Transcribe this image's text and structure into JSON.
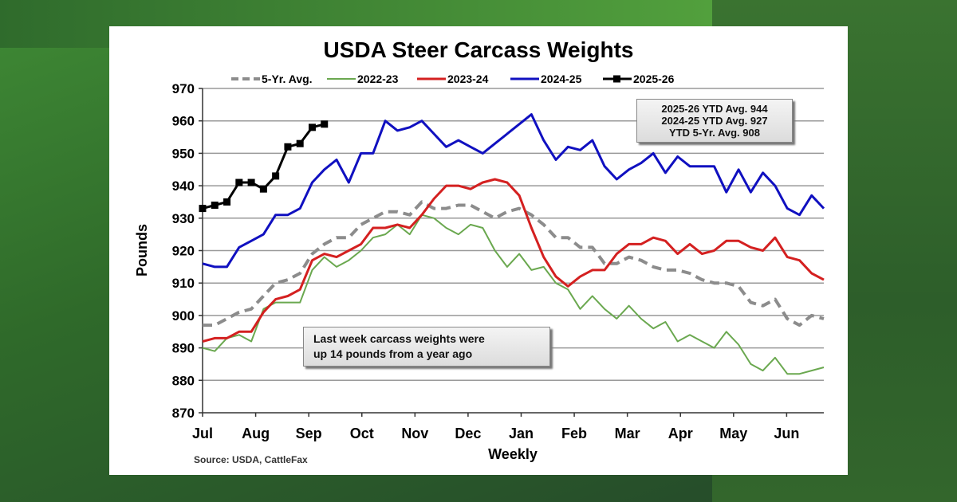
{
  "chart_data": {
    "type": "line",
    "title": "USDA Steer Carcass Weights",
    "xlabel": "Weekly",
    "ylabel": "Pounds",
    "ylim": [
      870,
      970
    ],
    "yticks": [
      870,
      880,
      890,
      900,
      910,
      920,
      930,
      940,
      950,
      960,
      970
    ],
    "month_labels": [
      "Jul",
      "Aug",
      "Sep",
      "Oct",
      "Nov",
      "Dec",
      "Jan",
      "Feb",
      "Mar",
      "Apr",
      "May",
      "Jun"
    ],
    "grid": true,
    "legend_placement": "top",
    "source": "Source: USDA, CattleFax",
    "annotations": {
      "note_line1": "Last week carcass weights were",
      "note_line2": "up 14 pounds from a year ago",
      "ytd_1": "2025-26 YTD Avg. 944",
      "ytd_2": "2024-25 YTD Avg. 927",
      "ytd_3": "YTD 5-Yr. Avg. 908"
    },
    "series": [
      {
        "name": "5-Yr. Avg.",
        "color": "#8c8c8c",
        "style": "dashed",
        "values": [
          897,
          897,
          899,
          901,
          902,
          906,
          910,
          911,
          913,
          919,
          922,
          924,
          924,
          928,
          930,
          932,
          932,
          931,
          935,
          933,
          933,
          934,
          934,
          932,
          930,
          932,
          933,
          931,
          928,
          924,
          924,
          921,
          921,
          916,
          916,
          918,
          917,
          915,
          914,
          914,
          913,
          911,
          910,
          910,
          909,
          904,
          903,
          905,
          899,
          897,
          900,
          899
        ]
      },
      {
        "name": "2022-23",
        "color": "#6aa84f",
        "style": "solid",
        "values": [
          890,
          889,
          893,
          894,
          892,
          902,
          904,
          904,
          904,
          914,
          918,
          915,
          917,
          920,
          924,
          925,
          928,
          925,
          931,
          930,
          927,
          925,
          928,
          927,
          920,
          915,
          919,
          914,
          915,
          910,
          908,
          902,
          906,
          902,
          899,
          903,
          899,
          896,
          898,
          892,
          894,
          892,
          890,
          895,
          891,
          885,
          883,
          887,
          882,
          882,
          883,
          884
        ]
      },
      {
        "name": "2023-24",
        "color": "#d42020",
        "style": "solid",
        "values": [
          892,
          893,
          893,
          895,
          895,
          901,
          905,
          906,
          908,
          917,
          919,
          918,
          920,
          922,
          927,
          927,
          928,
          927,
          931,
          936,
          940,
          940,
          939,
          941,
          942,
          941,
          937,
          927,
          918,
          912,
          909,
          912,
          914,
          914,
          919,
          922,
          922,
          924,
          923,
          919,
          922,
          919,
          920,
          923,
          923,
          921,
          920,
          924,
          918,
          917,
          913,
          911
        ]
      },
      {
        "name": "2024-25",
        "color": "#1010c0",
        "style": "solid",
        "values": [
          916,
          915,
          915,
          921,
          923,
          925,
          931,
          931,
          933,
          941,
          945,
          948,
          941,
          950,
          950,
          960,
          957,
          958,
          960,
          956,
          952,
          954,
          952,
          950,
          953,
          956,
          959,
          962,
          954,
          948,
          952,
          951,
          954,
          946,
          942,
          945,
          947,
          950,
          944,
          949,
          946,
          946,
          946,
          938,
          945,
          938,
          944,
          940,
          933,
          931,
          937,
          933
        ]
      },
      {
        "name": "2025-26",
        "color": "#000000",
        "style": "solid-square-markers",
        "values": [
          933,
          934,
          935,
          941,
          941,
          939,
          943,
          952,
          953,
          958,
          959
        ]
      }
    ]
  }
}
